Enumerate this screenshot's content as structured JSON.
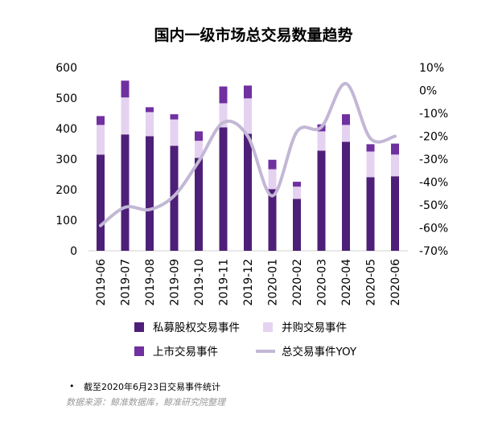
{
  "chart_data": {
    "type": "bar",
    "stacked": true,
    "title": "国内一级市场总交易数量趋势",
    "categories": [
      "2019-06",
      "2019-07",
      "2019-08",
      "2019-09",
      "2019-10",
      "2019-11",
      "2019-12",
      "2020-01",
      "2020-02",
      "2020-03",
      "2020-04",
      "2020-05",
      "2020-06"
    ],
    "series": [
      {
        "name": "私募股权交易事件",
        "type": "bar",
        "axis": "left",
        "color": "#4e1f78",
        "values": [
          315,
          381,
          375,
          344,
          304,
          404,
          383,
          202,
          170,
          328,
          357,
          241,
          244
        ]
      },
      {
        "name": "并购交易事件",
        "type": "bar",
        "axis": "left",
        "color": "#e5d2f0",
        "values": [
          97,
          121,
          79,
          86,
          56,
          79,
          116,
          65,
          40,
          63,
          55,
          84,
          71
        ]
      },
      {
        "name": "上市交易事件",
        "type": "bar",
        "axis": "left",
        "color": "#7030a0",
        "values": [
          29,
          55,
          16,
          17,
          31,
          55,
          42,
          31,
          16,
          23,
          35,
          24,
          36
        ]
      },
      {
        "name": "总交易事件YOY",
        "type": "line",
        "axis": "right",
        "color": "#c3b7d6",
        "values": [
          -59,
          -51,
          -52,
          -46,
          -31,
          -14,
          -20,
          -46,
          -18,
          -16,
          3,
          -21,
          -20
        ]
      }
    ],
    "ylim": [
      0,
      600
    ],
    "yticks": [
      "0",
      "100",
      "200",
      "300",
      "400",
      "500",
      "600"
    ],
    "y2lim": [
      -70,
      10
    ],
    "y2ticks": [
      "-70%",
      "-60%",
      "-50%",
      "-40%",
      "-30%",
      "-20%",
      "-10%",
      "0%",
      "10%"
    ],
    "grid": false,
    "legend_placement": "bottom"
  },
  "notes": {
    "bullet": "•",
    "footnote": "截至2020年6月23日交易事件统计",
    "source": "数据来源：鲸准数据库，鲸准研究院整理"
  }
}
